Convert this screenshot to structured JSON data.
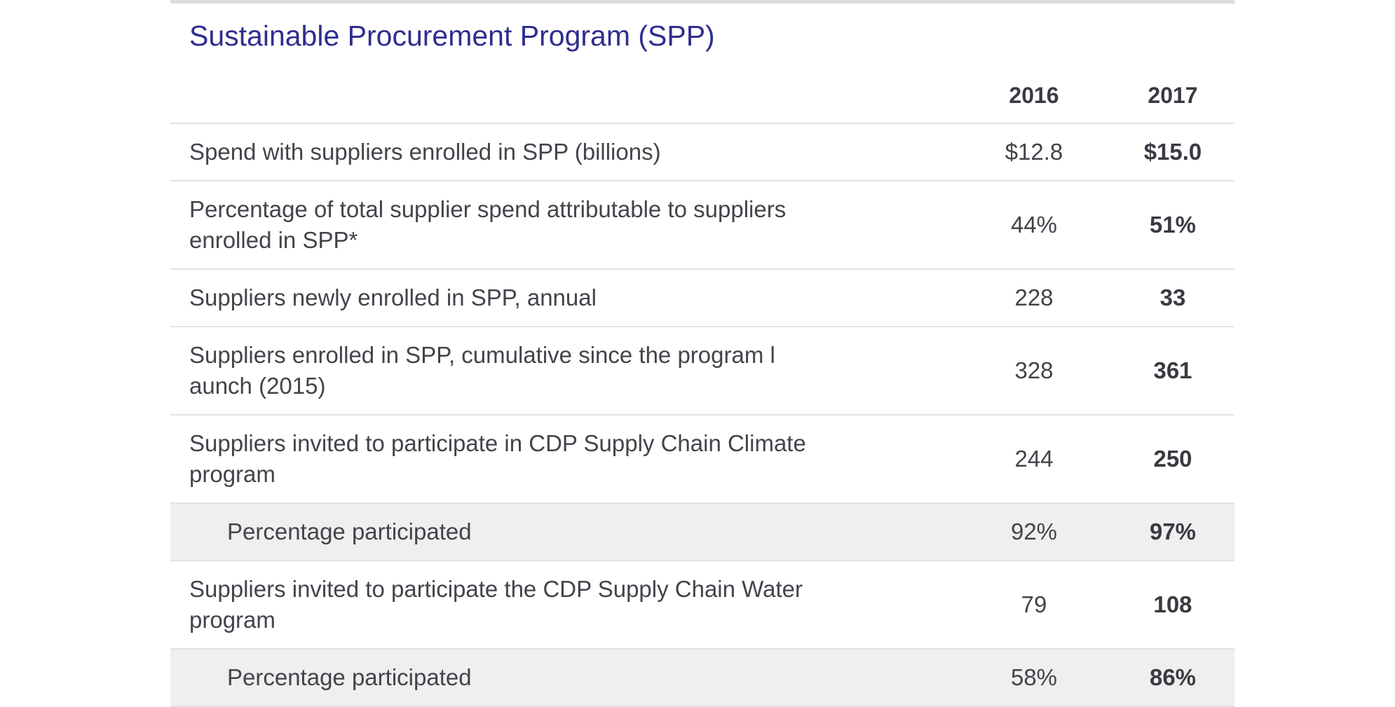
{
  "title": "Sustainable Procurement Program (SPP)",
  "columns": [
    "",
    "2016",
    "2017"
  ],
  "rows": [
    {
      "label": "Spend with suppliers enrolled in SPP (billions)",
      "v2016": "$12.8",
      "v2017": "$15.0"
    },
    {
      "label": "Percentage of total supplier spend attributable to suppliers enrolled in SPP*",
      "v2016": "44%",
      "v2017": "51%"
    },
    {
      "label": "Suppliers newly enrolled in SPP, annual",
      "v2016": "228",
      "v2017": "33"
    },
    {
      "label": "Suppliers enrolled in SPP, cumulative since the program l aunch (2015)",
      "v2016": "328",
      "v2017": "361"
    },
    {
      "label": "Suppliers invited to participate in CDP Supply Chain Climate program",
      "v2016": "244",
      "v2017": "250"
    },
    {
      "label": "Percentage participated",
      "v2016": "92%",
      "v2017": "97%"
    },
    {
      "label": "Suppliers invited to participate the CDP Supply Chain Water program",
      "v2016": "79",
      "v2017": "108"
    },
    {
      "label": "Percentage participated",
      "v2016": "58%",
      "v2017": "86%"
    }
  ]
}
